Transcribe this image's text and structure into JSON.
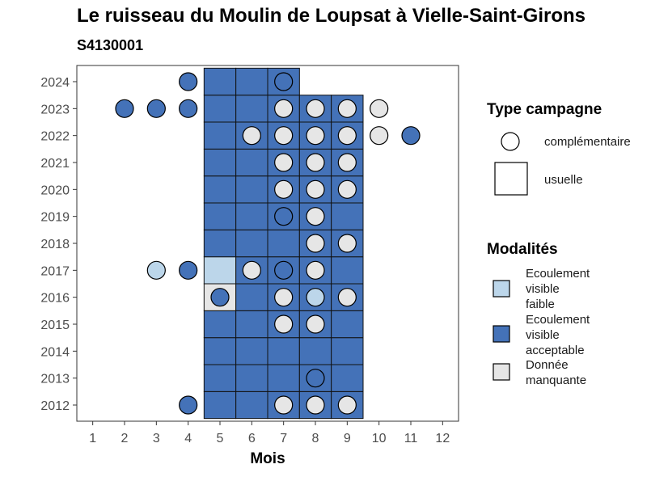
{
  "chart_data": {
    "type": "heatmap",
    "title": "Le ruisseau du Moulin de Loupsat à Vielle-Saint-Girons",
    "subtitle": "S4130001",
    "xlabel": "Mois",
    "ylabel": "",
    "x_ticks": [
      "1",
      "2",
      "3",
      "4",
      "5",
      "6",
      "7",
      "8",
      "9",
      "10",
      "11",
      "12"
    ],
    "y_ticks": [
      "2012",
      "2013",
      "2014",
      "2015",
      "2016",
      "2017",
      "2018",
      "2019",
      "2020",
      "2021",
      "2022",
      "2023",
      "2024"
    ],
    "xlim": [
      0.5,
      12.5
    ],
    "ylim": [
      2011.4,
      2024.6
    ],
    "colors": {
      "Ecoulement visible faible": "#bcd6ea",
      "Ecoulement visible acceptable": "#4472b8",
      "Donnée manquante": "#e6e6e6"
    },
    "tiles": [
      {
        "year": 2012,
        "month": 5,
        "modalite": "Ecoulement visible acceptable"
      },
      {
        "year": 2012,
        "month": 6,
        "modalite": "Ecoulement visible acceptable"
      },
      {
        "year": 2012,
        "month": 7,
        "modalite": "Ecoulement visible acceptable"
      },
      {
        "year": 2012,
        "month": 8,
        "modalite": "Ecoulement visible acceptable"
      },
      {
        "year": 2012,
        "month": 9,
        "modalite": "Ecoulement visible acceptable"
      },
      {
        "year": 2013,
        "month": 5,
        "modalite": "Ecoulement visible acceptable"
      },
      {
        "year": 2013,
        "month": 6,
        "modalite": "Ecoulement visible acceptable"
      },
      {
        "year": 2013,
        "month": 7,
        "modalite": "Ecoulement visible acceptable"
      },
      {
        "year": 2013,
        "month": 8,
        "modalite": "Ecoulement visible acceptable"
      },
      {
        "year": 2013,
        "month": 9,
        "modalite": "Ecoulement visible acceptable"
      },
      {
        "year": 2014,
        "month": 5,
        "modalite": "Ecoulement visible acceptable"
      },
      {
        "year": 2014,
        "month": 6,
        "modalite": "Ecoulement visible acceptable"
      },
      {
        "year": 2014,
        "month": 7,
        "modalite": "Ecoulement visible acceptable"
      },
      {
        "year": 2014,
        "month": 8,
        "modalite": "Ecoulement visible acceptable"
      },
      {
        "year": 2014,
        "month": 9,
        "modalite": "Ecoulement visible acceptable"
      },
      {
        "year": 2015,
        "month": 5,
        "modalite": "Ecoulement visible acceptable"
      },
      {
        "year": 2015,
        "month": 6,
        "modalite": "Ecoulement visible acceptable"
      },
      {
        "year": 2015,
        "month": 7,
        "modalite": "Ecoulement visible acceptable"
      },
      {
        "year": 2015,
        "month": 8,
        "modalite": "Ecoulement visible acceptable"
      },
      {
        "year": 2015,
        "month": 9,
        "modalite": "Ecoulement visible acceptable"
      },
      {
        "year": 2016,
        "month": 5,
        "modalite": "Donnée manquante"
      },
      {
        "year": 2016,
        "month": 6,
        "modalite": "Ecoulement visible acceptable"
      },
      {
        "year": 2016,
        "month": 7,
        "modalite": "Ecoulement visible acceptable"
      },
      {
        "year": 2016,
        "month": 8,
        "modalite": "Ecoulement visible acceptable"
      },
      {
        "year": 2016,
        "month": 9,
        "modalite": "Ecoulement visible acceptable"
      },
      {
        "year": 2017,
        "month": 5,
        "modalite": "Ecoulement visible faible"
      },
      {
        "year": 2017,
        "month": 6,
        "modalite": "Ecoulement visible acceptable"
      },
      {
        "year": 2017,
        "month": 7,
        "modalite": "Ecoulement visible acceptable"
      },
      {
        "year": 2017,
        "month": 8,
        "modalite": "Ecoulement visible acceptable"
      },
      {
        "year": 2017,
        "month": 9,
        "modalite": "Ecoulement visible acceptable"
      },
      {
        "year": 2018,
        "month": 5,
        "modalite": "Ecoulement visible acceptable"
      },
      {
        "year": 2018,
        "month": 6,
        "modalite": "Ecoulement visible acceptable"
      },
      {
        "year": 2018,
        "month": 7,
        "modalite": "Ecoulement visible acceptable"
      },
      {
        "year": 2018,
        "month": 8,
        "modalite": "Ecoulement visible acceptable"
      },
      {
        "year": 2018,
        "month": 9,
        "modalite": "Ecoulement visible acceptable"
      },
      {
        "year": 2019,
        "month": 5,
        "modalite": "Ecoulement visible acceptable"
      },
      {
        "year": 2019,
        "month": 6,
        "modalite": "Ecoulement visible acceptable"
      },
      {
        "year": 2019,
        "month": 7,
        "modalite": "Ecoulement visible acceptable"
      },
      {
        "year": 2019,
        "month": 8,
        "modalite": "Ecoulement visible acceptable"
      },
      {
        "year": 2019,
        "month": 9,
        "modalite": "Ecoulement visible acceptable"
      },
      {
        "year": 2020,
        "month": 5,
        "modalite": "Ecoulement visible acceptable"
      },
      {
        "year": 2020,
        "month": 6,
        "modalite": "Ecoulement visible acceptable"
      },
      {
        "year": 2020,
        "month": 7,
        "modalite": "Ecoulement visible acceptable"
      },
      {
        "year": 2020,
        "month": 8,
        "modalite": "Ecoulement visible acceptable"
      },
      {
        "year": 2020,
        "month": 9,
        "modalite": "Ecoulement visible acceptable"
      },
      {
        "year": 2021,
        "month": 5,
        "modalite": "Ecoulement visible acceptable"
      },
      {
        "year": 2021,
        "month": 6,
        "modalite": "Ecoulement visible acceptable"
      },
      {
        "year": 2021,
        "month": 7,
        "modalite": "Ecoulement visible acceptable"
      },
      {
        "year": 2021,
        "month": 8,
        "modalite": "Ecoulement visible acceptable"
      },
      {
        "year": 2021,
        "month": 9,
        "modalite": "Ecoulement visible acceptable"
      },
      {
        "year": 2022,
        "month": 5,
        "modalite": "Ecoulement visible acceptable"
      },
      {
        "year": 2022,
        "month": 6,
        "modalite": "Ecoulement visible acceptable"
      },
      {
        "year": 2022,
        "month": 7,
        "modalite": "Ecoulement visible acceptable"
      },
      {
        "year": 2022,
        "month": 8,
        "modalite": "Ecoulement visible acceptable"
      },
      {
        "year": 2022,
        "month": 9,
        "modalite": "Ecoulement visible acceptable"
      },
      {
        "year": 2023,
        "month": 5,
        "modalite": "Ecoulement visible acceptable"
      },
      {
        "year": 2023,
        "month": 6,
        "modalite": "Ecoulement visible acceptable"
      },
      {
        "year": 2023,
        "month": 7,
        "modalite": "Ecoulement visible acceptable"
      },
      {
        "year": 2023,
        "month": 8,
        "modalite": "Ecoulement visible acceptable"
      },
      {
        "year": 2023,
        "month": 9,
        "modalite": "Ecoulement visible acceptable"
      },
      {
        "year": 2024,
        "month": 5,
        "modalite": "Ecoulement visible acceptable"
      },
      {
        "year": 2024,
        "month": 6,
        "modalite": "Ecoulement visible acceptable"
      },
      {
        "year": 2024,
        "month": 7,
        "modalite": "Ecoulement visible acceptable"
      }
    ],
    "points": [
      {
        "year": 2024,
        "month": 4,
        "modalite": "Ecoulement visible acceptable"
      },
      {
        "year": 2024,
        "month": 7,
        "modalite": "Ecoulement visible acceptable"
      },
      {
        "year": 2023,
        "month": 2,
        "modalite": "Ecoulement visible acceptable"
      },
      {
        "year": 2023,
        "month": 3,
        "modalite": "Ecoulement visible acceptable"
      },
      {
        "year": 2023,
        "month": 4,
        "modalite": "Ecoulement visible acceptable"
      },
      {
        "year": 2023,
        "month": 7,
        "modalite": "Donnée manquante"
      },
      {
        "year": 2023,
        "month": 8,
        "modalite": "Donnée manquante"
      },
      {
        "year": 2023,
        "month": 9,
        "modalite": "Donnée manquante"
      },
      {
        "year": 2023,
        "month": 10,
        "modalite": "Donnée manquante"
      },
      {
        "year": 2022,
        "month": 6,
        "modalite": "Donnée manquante"
      },
      {
        "year": 2022,
        "month": 7,
        "modalite": "Donnée manquante"
      },
      {
        "year": 2022,
        "month": 8,
        "modalite": "Donnée manquante"
      },
      {
        "year": 2022,
        "month": 9,
        "modalite": "Donnée manquante"
      },
      {
        "year": 2022,
        "month": 10,
        "modalite": "Donnée manquante"
      },
      {
        "year": 2022,
        "month": 11,
        "modalite": "Ecoulement visible acceptable"
      },
      {
        "year": 2021,
        "month": 7,
        "modalite": "Donnée manquante"
      },
      {
        "year": 2021,
        "month": 8,
        "modalite": "Donnée manquante"
      },
      {
        "year": 2021,
        "month": 9,
        "modalite": "Donnée manquante"
      },
      {
        "year": 2020,
        "month": 7,
        "modalite": "Donnée manquante"
      },
      {
        "year": 2020,
        "month": 8,
        "modalite": "Donnée manquante"
      },
      {
        "year": 2020,
        "month": 9,
        "modalite": "Donnée manquante"
      },
      {
        "year": 2019,
        "month": 7,
        "modalite": "Ecoulement visible acceptable"
      },
      {
        "year": 2019,
        "month": 8,
        "modalite": "Donnée manquante"
      },
      {
        "year": 2018,
        "month": 8,
        "modalite": "Donnée manquante"
      },
      {
        "year": 2018,
        "month": 9,
        "modalite": "Donnée manquante"
      },
      {
        "year": 2017,
        "month": 3,
        "modalite": "Ecoulement visible faible"
      },
      {
        "year": 2017,
        "month": 4,
        "modalite": "Ecoulement visible acceptable"
      },
      {
        "year": 2017,
        "month": 6,
        "modalite": "Donnée manquante"
      },
      {
        "year": 2017,
        "month": 7,
        "modalite": "Ecoulement visible acceptable"
      },
      {
        "year": 2017,
        "month": 8,
        "modalite": "Donnée manquante"
      },
      {
        "year": 2016,
        "month": 5,
        "modalite": "Ecoulement visible acceptable"
      },
      {
        "year": 2016,
        "month": 7,
        "modalite": "Donnée manquante"
      },
      {
        "year": 2016,
        "month": 8,
        "modalite": "Ecoulement visible faible"
      },
      {
        "year": 2016,
        "month": 9,
        "modalite": "Donnée manquante"
      },
      {
        "year": 2015,
        "month": 7,
        "modalite": "Donnée manquante"
      },
      {
        "year": 2015,
        "month": 8,
        "modalite": "Donnée manquante"
      },
      {
        "year": 2013,
        "month": 8,
        "modalite": "Ecoulement visible acceptable"
      },
      {
        "year": 2012,
        "month": 4,
        "modalite": "Ecoulement visible acceptable"
      },
      {
        "year": 2012,
        "month": 7,
        "modalite": "Donnée manquante"
      },
      {
        "year": 2012,
        "month": 8,
        "modalite": "Donnée manquante"
      },
      {
        "year": 2012,
        "month": 9,
        "modalite": "Donnée manquante"
      }
    ],
    "legend_position": "right",
    "grid": false,
    "legend": {
      "type_title": "Type campagne",
      "type_items": [
        {
          "label": "complémentaire",
          "shape": "circle"
        },
        {
          "label": "usuelle",
          "shape": "square"
        }
      ],
      "modalites_title": "Modalités",
      "modalites_items": [
        {
          "lines": [
            "Ecoulement",
            "visible",
            "faible"
          ],
          "color": "#bcd6ea"
        },
        {
          "lines": [
            "Ecoulement",
            "visible",
            "acceptable"
          ],
          "color": "#4472b8"
        },
        {
          "lines": [
            "Donnée",
            "manquante"
          ],
          "color": "#e6e6e6"
        }
      ]
    }
  }
}
